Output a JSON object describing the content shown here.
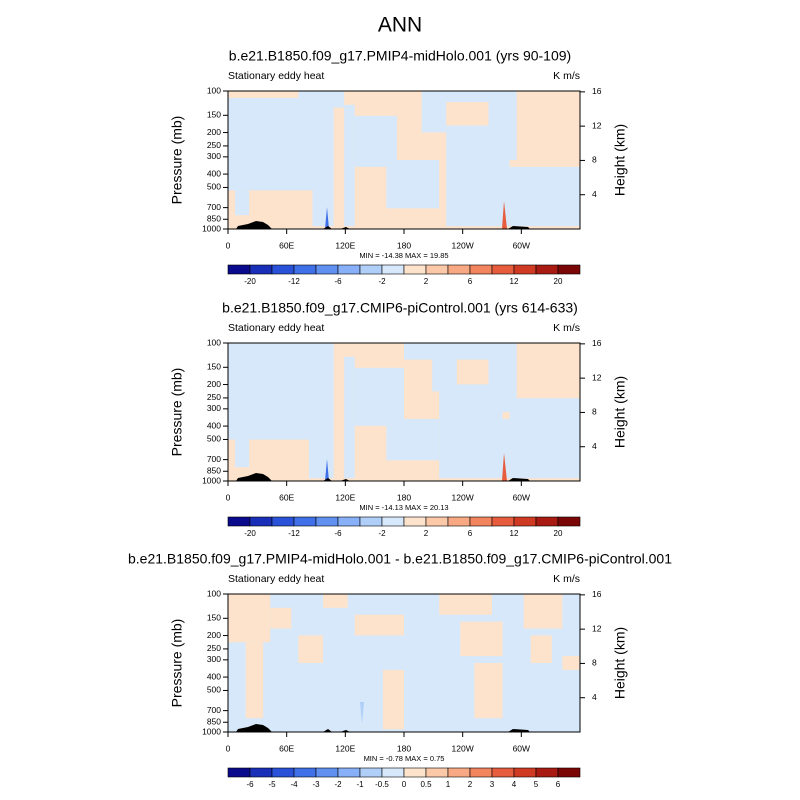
{
  "title": "ANN",
  "chart_data": [
    {
      "type": "contour",
      "title": "b.e21.B1850.f09_g17.PMIP4-midHolo.001 (yrs 90-109)",
      "left_label": "Stationary eddy heat",
      "right_label": "K m/s",
      "ylabel": "Pressure (mb)",
      "y2label": "Height (km)",
      "xlim": [
        0,
        360
      ],
      "xticks": [
        0,
        {
          "value": 60,
          "label": "60E"
        },
        {
          "value": 120,
          "label": "120E"
        },
        180,
        {
          "value": 240,
          "label": "120W"
        },
        {
          "value": 300,
          "label": "60W"
        }
      ],
      "ylim": [
        1000,
        100
      ],
      "ylog": true,
      "yticks": [
        100,
        150,
        200,
        250,
        300,
        400,
        500,
        700,
        850,
        1000
      ],
      "y2lim": [
        0,
        16.1
      ],
      "y2ticks": [
        4,
        8,
        12,
        16
      ],
      "stats": "MIN = -14.38  MAX =  19.85",
      "colorbar": {
        "labels": [
          -20,
          -12,
          -6,
          -2,
          2,
          6,
          12,
          20
        ],
        "colors": [
          "#0a0a8c",
          "#1a2fb8",
          "#2a52d8",
          "#4070e8",
          "#6090f0",
          "#88b0f8",
          "#b0cff8",
          "#d6e8fa",
          "#fde3cc",
          "#fbc9a8",
          "#f8a882",
          "#f2845e",
          "#e65c3c",
          "#cf3a23",
          "#a81a12",
          "#7a0606"
        ]
      }
    },
    {
      "type": "contour",
      "title": "b.e21.B1850.f09_g17.CMIP6-piControl.001 (yrs 614-633)",
      "left_label": "Stationary eddy heat",
      "right_label": "K m/s",
      "ylabel": "Pressure (mb)",
      "y2label": "Height (km)",
      "xlim": [
        0,
        360
      ],
      "xticks": [
        0,
        {
          "value": 60,
          "label": "60E"
        },
        {
          "value": 120,
          "label": "120E"
        },
        180,
        {
          "value": 240,
          "label": "120W"
        },
        {
          "value": 300,
          "label": "60W"
        }
      ],
      "ylim": [
        1000,
        100
      ],
      "ylog": true,
      "yticks": [
        100,
        150,
        200,
        250,
        300,
        400,
        500,
        700,
        850,
        1000
      ],
      "y2lim": [
        0,
        16.1
      ],
      "y2ticks": [
        4,
        8,
        12,
        16
      ],
      "stats": "MIN = -14.13  MAX =  20.13",
      "colorbar": {
        "labels": [
          -20,
          -12,
          -6,
          -2,
          2,
          6,
          12,
          20
        ],
        "colors": [
          "#0a0a8c",
          "#1a2fb8",
          "#2a52d8",
          "#4070e8",
          "#6090f0",
          "#88b0f8",
          "#b0cff8",
          "#d6e8fa",
          "#fde3cc",
          "#fbc9a8",
          "#f8a882",
          "#f2845e",
          "#e65c3c",
          "#cf3a23",
          "#a81a12",
          "#7a0606"
        ]
      }
    },
    {
      "type": "contour",
      "title": "b.e21.B1850.f09_g17.PMIP4-midHolo.001 - b.e21.B1850.f09_g17.CMIP6-piControl.001",
      "left_label": "Stationary eddy heat",
      "right_label": "K m/s",
      "ylabel": "Pressure (mb)",
      "y2label": "Height (km)",
      "xlim": [
        0,
        360
      ],
      "xticks": [
        0,
        {
          "value": 60,
          "label": "60E"
        },
        {
          "value": 120,
          "label": "120E"
        },
        180,
        {
          "value": 240,
          "label": "120W"
        },
        {
          "value": 300,
          "label": "60W"
        }
      ],
      "ylim": [
        1000,
        100
      ],
      "ylog": true,
      "yticks": [
        100,
        150,
        200,
        250,
        300,
        400,
        500,
        700,
        850,
        1000
      ],
      "y2lim": [
        0,
        16.1
      ],
      "y2ticks": [
        4,
        8,
        12,
        16
      ],
      "stats": "MIN = -0.78  MAX =  0.75",
      "colorbar": {
        "labels": [
          -6,
          -5,
          -4,
          -3,
          -2,
          -1,
          -0.5,
          0,
          0.5,
          1,
          2,
          3,
          4,
          5,
          6
        ],
        "colors": [
          "#0a0a8c",
          "#1a2fb8",
          "#2a52d8",
          "#4070e8",
          "#6090f0",
          "#88b0f8",
          "#b0cff8",
          "#d6e8fa",
          "#fde3cc",
          "#fbc9a8",
          "#f8a882",
          "#f2845e",
          "#e65c3c",
          "#cf3a23",
          "#a81a12",
          "#7a0606"
        ]
      }
    }
  ]
}
